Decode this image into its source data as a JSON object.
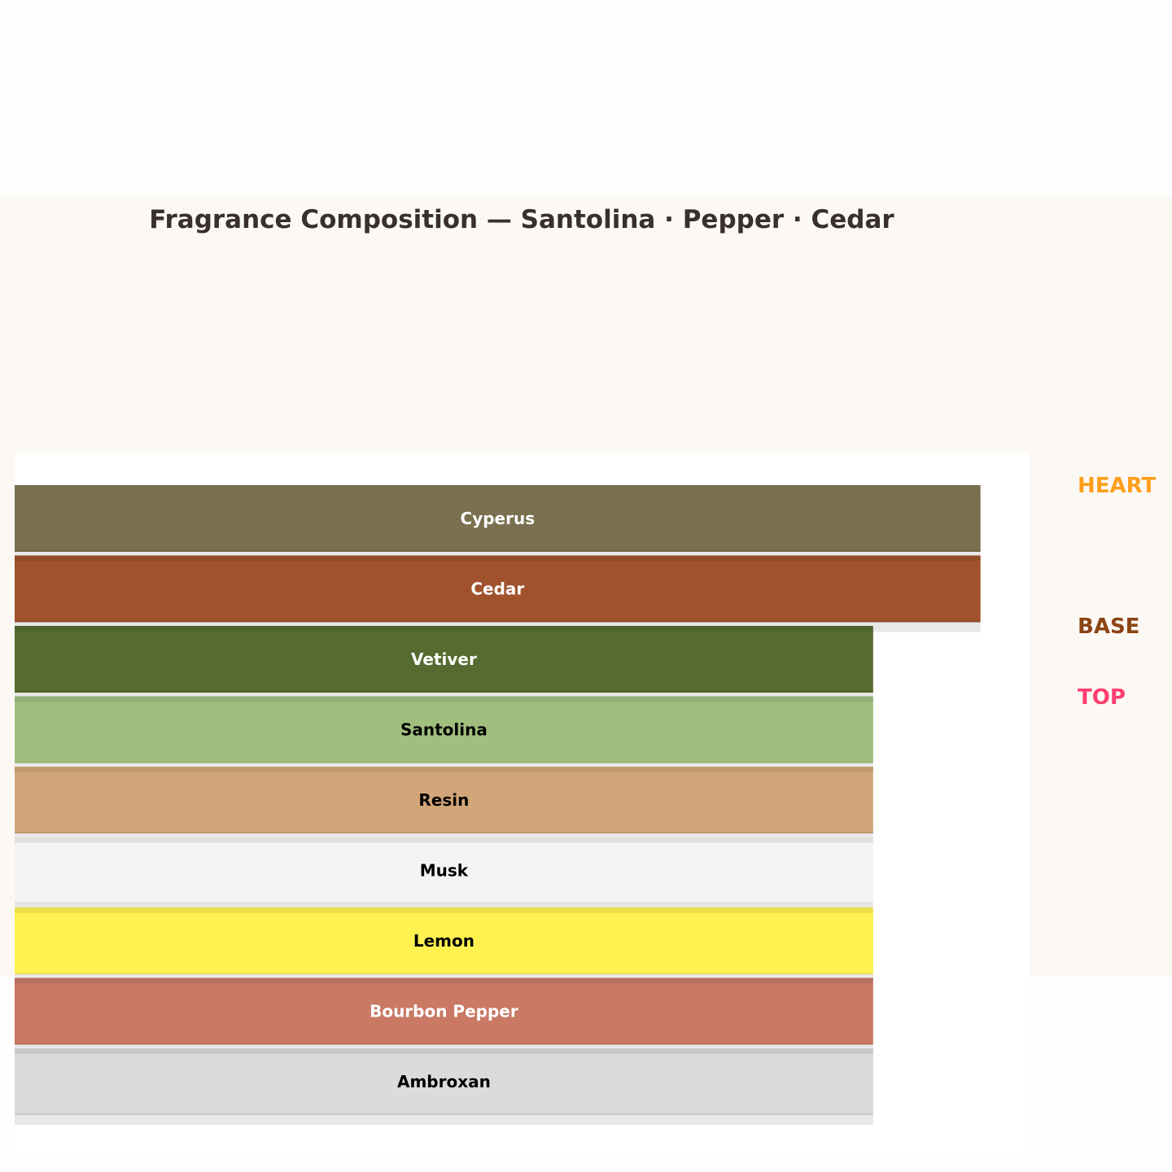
{
  "chart_data": {
    "type": "bar",
    "orientation": "horizontal",
    "title": "Fragrance Composition — Santolina · Pepper · Cedar",
    "xlim": [
      0,
      9.45
    ],
    "grid": false,
    "categories": [
      "Cyperus",
      "Cedar",
      "Vetiver",
      "Santolina",
      "Resin",
      "Musk",
      "Lemon",
      "Bourbon Pepper",
      "Ambroxan"
    ],
    "values": [
      9,
      9,
      8,
      8,
      8,
      8,
      8,
      8,
      8
    ],
    "colors": [
      "#7a6f4f",
      "#a0522d",
      "#556b2f",
      "#a0bf7e",
      "#d2a679",
      "#f4f4f4",
      "#fff250",
      "#c97964",
      "#dbdbdb"
    ],
    "label_colors": [
      "#ffffff",
      "#ffffff",
      "#ffffff",
      "#000000",
      "#000000",
      "#000000",
      "#000000",
      "#ffffff",
      "#000000"
    ],
    "tier_labels": [
      {
        "text": "HEART",
        "color": "#ff9f1c"
      },
      {
        "text": "BASE",
        "color": "#8b4513"
      },
      {
        "text": "TOP",
        "color": "#ff3d6e"
      }
    ]
  }
}
